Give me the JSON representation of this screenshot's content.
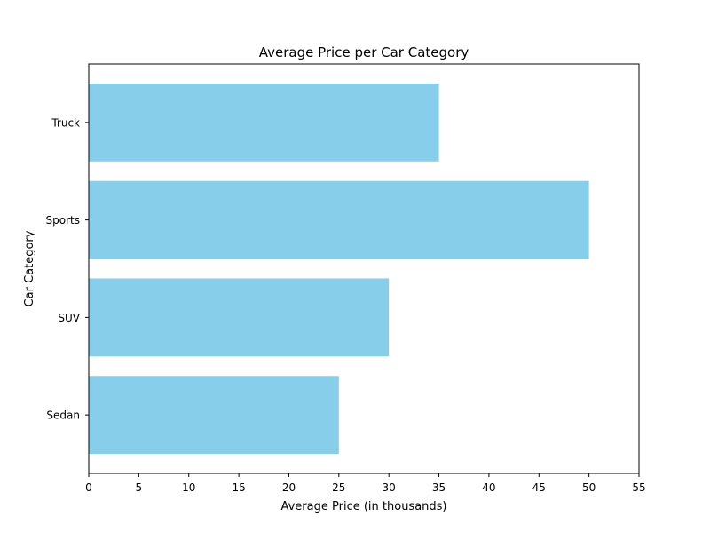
{
  "chart_data": {
    "type": "bar",
    "orientation": "horizontal",
    "title": "Average Price per Car Category",
    "xlabel": "Average Price (in thousands)",
    "ylabel": "Car Category",
    "categories": [
      "Sedan",
      "SUV",
      "Sports",
      "Truck"
    ],
    "values": [
      25,
      30,
      50,
      35
    ],
    "xlim": [
      0,
      55
    ],
    "xticks": [
      0,
      5,
      10,
      15,
      20,
      25,
      30,
      35,
      40,
      45,
      50,
      55
    ],
    "grid": false,
    "legend": "none",
    "bar_color": "#87ceeb"
  }
}
